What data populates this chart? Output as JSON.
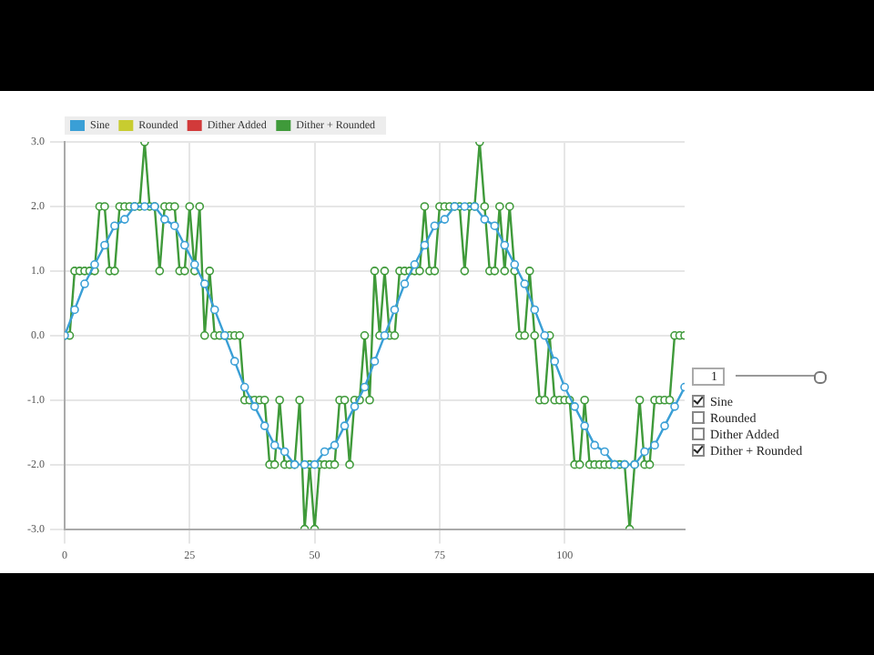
{
  "chart_data": {
    "type": "line",
    "xlim": [
      0,
      124
    ],
    "xticks": [
      0,
      25,
      50,
      75,
      100
    ],
    "ylim": [
      -3,
      3
    ],
    "yticks": [
      {
        "value": -3,
        "label": "-3.0"
      },
      {
        "value": -2,
        "label": "-2.0"
      },
      {
        "value": -1,
        "label": "-1.0"
      },
      {
        "value": 0,
        "label": "0.0"
      },
      {
        "value": 1,
        "label": "1.0"
      },
      {
        "value": 2,
        "label": "2.0"
      },
      {
        "value": 3,
        "label": "3.0"
      }
    ],
    "grid": true,
    "legend": "top left",
    "marker": "circle",
    "line_style": "solid",
    "annotations": [
      "1"
    ],
    "series": [
      {
        "name": "Sine",
        "color": "#3a9fd6",
        "x": [
          0,
          2,
          4,
          6,
          8,
          10,
          12,
          14,
          16,
          18,
          20,
          22,
          24,
          26,
          28,
          30,
          32,
          34,
          36,
          38,
          40,
          42,
          44,
          46,
          48,
          50,
          52,
          54,
          56,
          58,
          60,
          62,
          64,
          66,
          68,
          70,
          72,
          74,
          76,
          78,
          80,
          82,
          84,
          86,
          88,
          90,
          92,
          94,
          96,
          98,
          100,
          102,
          104,
          106,
          108,
          110,
          112,
          114,
          116,
          118,
          120,
          122,
          124
        ],
        "values": [
          0,
          0.4,
          0.8,
          1.1,
          1.4,
          1.7,
          1.8,
          2,
          2,
          2,
          1.8,
          1.7,
          1.4,
          1.1,
          0.8,
          0.4,
          0,
          -0.4,
          -0.8,
          -1.1,
          -1.4,
          -1.7,
          -1.8,
          -2,
          -2,
          -2,
          -1.8,
          -1.7,
          -1.4,
          -1.1,
          -0.8,
          -0.4,
          0,
          0.4,
          0.8,
          1.1,
          1.4,
          1.7,
          1.8,
          2,
          2,
          2,
          1.8,
          1.7,
          1.4,
          1.1,
          0.8,
          0.4,
          0,
          -0.4,
          -0.8,
          -1.1,
          -1.4,
          -1.7,
          -1.8,
          -2,
          -2,
          -2,
          -1.8,
          -1.7,
          -1.4,
          -1.1,
          -0.8
        ]
      },
      {
        "name": "Rounded",
        "color": "#c8cc30"
      },
      {
        "name": "Dither Added",
        "color": "#d23a3a"
      },
      {
        "name": "Dither + Rounded",
        "color": "#3f9a3a",
        "x": [
          0,
          1,
          2,
          3,
          4,
          5,
          6,
          7,
          8,
          9,
          10,
          11,
          12,
          13,
          14,
          15,
          16,
          17,
          18,
          19,
          20,
          21,
          22,
          23,
          24,
          25,
          26,
          27,
          28,
          29,
          30,
          31,
          32,
          33,
          34,
          35,
          36,
          37,
          38,
          39,
          40,
          41,
          42,
          43,
          44,
          45,
          46,
          47,
          48,
          49,
          50,
          51,
          52,
          53,
          54,
          55,
          56,
          57,
          58,
          59,
          60,
          61,
          62,
          63,
          64,
          65,
          66,
          67,
          68,
          69,
          70,
          71,
          72,
          73,
          74,
          75,
          76,
          77,
          78,
          79,
          80,
          81,
          82,
          83,
          84,
          85,
          86,
          87,
          88,
          89,
          90,
          91,
          92,
          93,
          94,
          95,
          96,
          97,
          98,
          99,
          100,
          101,
          102,
          103,
          104,
          105,
          106,
          107,
          108,
          109,
          110,
          111,
          112,
          113,
          114,
          115,
          116,
          117,
          118,
          119,
          120,
          121,
          122,
          123,
          124
        ],
        "values": [
          0,
          0,
          1,
          1,
          1,
          1,
          1,
          2,
          2,
          1,
          1,
          2,
          2,
          2,
          2,
          2,
          3,
          2,
          2,
          1,
          2,
          2,
          2,
          1,
          1,
          2,
          1,
          2,
          0,
          1,
          0,
          0,
          0,
          0,
          0,
          0,
          -1,
          -1,
          -1,
          -1,
          -1,
          -2,
          -2,
          -1,
          -2,
          -2,
          -2,
          -1,
          -3,
          -2,
          -3,
          -2,
          -2,
          -2,
          -2,
          -1,
          -1,
          -2,
          -1,
          -1,
          0,
          -1,
          1,
          0,
          1,
          0,
          0,
          1,
          1,
          1,
          1,
          1,
          2,
          1,
          1,
          2,
          2,
          2,
          2,
          2,
          1,
          2,
          2,
          3,
          2,
          1,
          1,
          2,
          1,
          2,
          1,
          0,
          0,
          1,
          0,
          -1,
          -1,
          0,
          -1,
          -1,
          -1,
          -1,
          -2,
          -2,
          -1,
          -2,
          -2,
          -2,
          -2,
          -2,
          -2,
          -2,
          -2,
          -3,
          -2,
          -1,
          -2,
          -2,
          -1,
          -1,
          -1,
          -1,
          0,
          0,
          0
        ]
      }
    ]
  }
}
